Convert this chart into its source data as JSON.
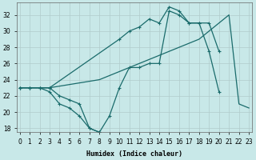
{
  "bg_color": "#c8e8e8",
  "line_color": "#1a6b6b",
  "grid_color": "#b0cccc",
  "xlabel": "Humidex (Indice chaleur)",
  "xlim": [
    -0.3,
    23.3
  ],
  "ylim": [
    17.5,
    33.5
  ],
  "xtick_labels": [
    "0",
    "1",
    "2",
    "3",
    "4",
    "5",
    "6",
    "7",
    "8",
    "9",
    "10",
    "11",
    "12",
    "13",
    "14",
    "15",
    "16",
    "17",
    "18",
    "19",
    "20",
    "21",
    "22",
    "23"
  ],
  "xticks": [
    0,
    1,
    2,
    3,
    4,
    5,
    6,
    7,
    8,
    9,
    10,
    11,
    12,
    13,
    14,
    15,
    16,
    17,
    18,
    19,
    20,
    21,
    22,
    23
  ],
  "yticks": [
    18,
    20,
    22,
    24,
    26,
    28,
    30,
    32
  ],
  "line1_x": [
    0,
    1,
    2,
    3,
    4,
    5,
    6,
    7,
    8,
    9,
    10,
    11,
    12,
    13,
    14,
    15,
    16,
    17,
    18,
    19,
    20
  ],
  "line1_y": [
    23,
    23,
    23,
    23,
    22,
    21.5,
    21,
    18,
    17.5,
    19.5,
    23,
    25.5,
    25.5,
    26,
    26,
    32.5,
    32,
    31,
    31,
    27.5,
    22.5
  ],
  "line2_x": [
    0,
    1,
    2,
    3,
    4,
    5,
    6,
    7,
    8
  ],
  "line2_y": [
    23,
    23,
    23,
    22.5,
    21,
    20.5,
    19.5,
    18,
    17.5
  ],
  "line3_x": [
    0,
    1,
    2,
    3,
    4,
    5,
    6,
    7,
    8,
    9,
    10,
    11,
    12,
    13,
    14,
    15,
    16,
    17,
    18,
    19,
    20,
    21,
    22,
    23
  ],
  "line3_y": [
    23,
    23,
    23,
    23,
    23.2,
    23.4,
    23.6,
    23.8,
    24,
    24.5,
    25,
    25.5,
    26,
    26.5,
    27,
    27.5,
    28,
    28.5,
    29,
    30,
    31,
    32,
    21,
    20.5
  ],
  "line4_x": [
    0,
    1,
    2,
    3,
    10,
    11,
    12,
    13,
    14,
    15,
    16,
    17,
    18,
    19,
    20
  ],
  "line4_y": [
    23,
    23,
    23,
    23,
    29,
    30,
    30.5,
    31.5,
    31,
    33,
    32.5,
    31,
    31,
    31,
    27.5
  ]
}
